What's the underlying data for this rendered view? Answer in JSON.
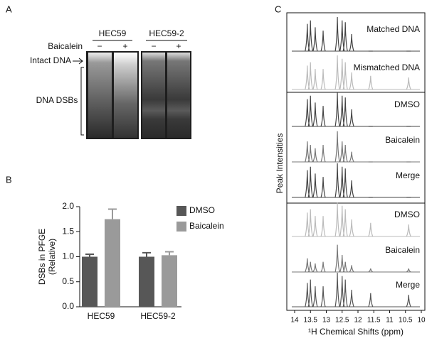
{
  "panel_a": {
    "label": "A",
    "groups": [
      "HEC59",
      "HEC59-2"
    ],
    "treatment": "Baicalein",
    "signs": [
      "−",
      "+",
      "−",
      "+"
    ],
    "intact": "Intact DNA",
    "dsbs": "DNA DSBs"
  },
  "chart_data": [
    {
      "type": "bar",
      "label": "B",
      "y_label": [
        "DSBs in PFGE",
        "(Relative)"
      ],
      "categories": [
        "HEC59",
        "HEC59-2"
      ],
      "series": [
        {
          "name": "DMSO",
          "color": "#575757",
          "values": [
            1.0,
            1.0
          ],
          "errors": [
            0.05,
            0.08
          ]
        },
        {
          "name": "Baicalein",
          "color": "#9a9a9a",
          "values": [
            1.75,
            1.03
          ],
          "errors": [
            0.2,
            0.07
          ]
        }
      ],
      "ylim": [
        0,
        2
      ],
      "yticks": [
        {
          "value": 0,
          "label": "0.0"
        },
        0.5,
        {
          "value": 1,
          "label": "1.0"
        },
        1.5,
        {
          "value": 2,
          "label": "2.0"
        }
      ]
    },
    {
      "type": "spectra",
      "label": "C",
      "y_label": "Peak Intensities",
      "x_label": "¹H Chemical Shifts (ppm)",
      "xlim": [
        14,
        10
      ],
      "xticks": [
        14,
        13.5,
        13,
        12.5,
        12,
        11.5,
        11,
        10.5,
        10
      ],
      "x": [
        13.6,
        13.5,
        13.35,
        13.1,
        12.65,
        12.5,
        12.4,
        12.2,
        11.6,
        10.4
      ],
      "groups": [
        {
          "series": [
            {
              "name": "Matched DNA",
              "color": "#444444",
              "values": [
                0.8,
                0.9,
                0.7,
                0.6,
                1,
                0.9,
                0.85,
                0.5,
                0,
                0
              ]
            },
            {
              "name": "Mismatched DNA",
              "color": "#bbbbbb",
              "values": [
                0.7,
                0.8,
                0.6,
                0.6,
                1,
                0.9,
                0.8,
                0.5,
                0.4,
                0.35
              ]
            }
          ]
        },
        {
          "series": [
            {
              "name": "DMSO",
              "color": "#444444",
              "values": [
                0.8,
                0.9,
                0.7,
                0.6,
                1,
                0.9,
                0.85,
                0.5,
                0,
                0
              ]
            },
            {
              "name": "Baicalein",
              "color": "#777777",
              "values": [
                0.6,
                0.5,
                0.4,
                0.5,
                0.9,
                0.6,
                0.5,
                0.3,
                0,
                0
              ]
            },
            {
              "name": "Merge",
              "color": "#444444",
              "values": [
                0.8,
                0.9,
                0.7,
                0.6,
                1,
                0.9,
                0.85,
                0.5,
                0,
                0
              ]
            }
          ]
        },
        {
          "series": [
            {
              "name": "DMSO",
              "color": "#bbbbbb",
              "values": [
                0.7,
                0.8,
                0.6,
                0.6,
                1,
                0.9,
                0.8,
                0.5,
                0.4,
                0.35
              ]
            },
            {
              "name": "Baicalein",
              "color": "#777777",
              "values": [
                0.4,
                0.3,
                0.25,
                0.3,
                0.8,
                0.5,
                0.3,
                0.2,
                0.1,
                0.1
              ]
            },
            {
              "name": "Merge",
              "color": "#555555",
              "values": [
                0.7,
                0.8,
                0.6,
                0.6,
                1,
                0.9,
                0.8,
                0.5,
                0.4,
                0.35
              ]
            }
          ]
        }
      ]
    }
  ]
}
